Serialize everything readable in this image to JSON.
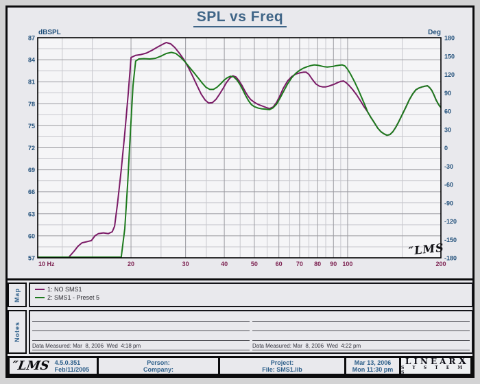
{
  "title": "SPL vs Freq",
  "colors": {
    "curve1": "#7a1a66",
    "curve2": "#1d7a1d",
    "tick_blue": "#1f4e79",
    "tick_maroon": "#7d2352",
    "grid_major": "#9a9aa0",
    "grid_minor": "#c7c7cd",
    "plot_bg": "#f5f5f7",
    "plot_border": "#000000"
  },
  "axes": {
    "left_title": "dBSPL",
    "right_title": "Deg",
    "x_first_tick": "10 Hz",
    "spl_labels": [
      "87",
      "84",
      "81",
      "78",
      "75",
      "72",
      "69",
      "66",
      "63",
      "60",
      "57"
    ],
    "deg_labels": [
      "180",
      "150",
      "120",
      "90",
      "60",
      "30",
      "0",
      "-30",
      "-60",
      "-90",
      "-120",
      "-150",
      "-180"
    ],
    "freq_labels": [
      {
        "f": 20,
        "t": "20"
      },
      {
        "f": 30,
        "t": "30"
      },
      {
        "f": 40,
        "t": "40"
      },
      {
        "f": 50,
        "t": "50"
      },
      {
        "f": 60,
        "t": "60"
      },
      {
        "f": 70,
        "t": "70"
      },
      {
        "f": 80,
        "t": "80"
      },
      {
        "f": 90,
        "t": "90"
      },
      {
        "f": 100,
        "t": "100"
      },
      {
        "f": 200,
        "t": "200"
      }
    ]
  },
  "chart_data": {
    "type": "line",
    "title": "SPL vs Freq",
    "x_axis": {
      "unit": "Hz",
      "scale": "log",
      "range": [
        10,
        200
      ],
      "major_ticks": [
        20,
        30,
        40,
        50,
        60,
        70,
        80,
        90,
        100,
        200
      ],
      "minor_ticks": [
        12,
        15,
        25,
        35,
        45,
        55,
        65,
        75,
        85,
        95,
        150
      ]
    },
    "y_left": {
      "label": "dBSPL",
      "range": [
        57,
        87
      ],
      "tick_step": 3,
      "minor_step": 1.5
    },
    "y_right": {
      "label": "Deg",
      "range": [
        -180,
        180
      ],
      "tick_step": 30
    },
    "legend_position": "map-strip-below",
    "grid": true,
    "series": [
      {
        "name": "1: NO SMS1",
        "color": "#7a1a66",
        "points": [
          [
            10,
            57
          ],
          [
            12.6,
            57
          ],
          [
            13.1,
            57.9
          ],
          [
            13.5,
            58.6
          ],
          [
            13.9,
            59.05
          ],
          [
            14.4,
            59.2
          ],
          [
            14.9,
            59.35
          ],
          [
            15.3,
            60.0
          ],
          [
            15.7,
            60.3
          ],
          [
            16.3,
            60.4
          ],
          [
            16.9,
            60.3
          ],
          [
            17.4,
            60.55
          ],
          [
            17.7,
            61.3
          ],
          [
            18.1,
            64.5
          ],
          [
            18.6,
            69
          ],
          [
            19.1,
            74
          ],
          [
            19.6,
            79.5
          ],
          [
            20,
            84.3
          ],
          [
            20.7,
            84.6
          ],
          [
            21.5,
            84.7
          ],
          [
            22.4,
            84.9
          ],
          [
            23.3,
            85.25
          ],
          [
            24.3,
            85.7
          ],
          [
            25.3,
            86.1
          ],
          [
            26,
            86.35
          ],
          [
            26.9,
            86.15
          ],
          [
            27.7,
            85.65
          ],
          [
            28.7,
            84.85
          ],
          [
            29.7,
            83.95
          ],
          [
            30.7,
            82.85
          ],
          [
            31.7,
            81.65
          ],
          [
            32.7,
            80.45
          ],
          [
            33.7,
            79.3
          ],
          [
            34.7,
            78.5
          ],
          [
            35.6,
            78.1
          ],
          [
            36.6,
            78.15
          ],
          [
            37.6,
            78.6
          ],
          [
            38.6,
            79.3
          ],
          [
            39.6,
            80.05
          ],
          [
            40.6,
            80.85
          ],
          [
            41.6,
            81.45
          ],
          [
            42.6,
            81.8
          ],
          [
            43.6,
            81.65
          ],
          [
            44.6,
            81.15
          ],
          [
            45.6,
            80.5
          ],
          [
            46.6,
            79.75
          ],
          [
            47.6,
            79.1
          ],
          [
            48.6,
            78.6
          ],
          [
            50,
            78.2
          ],
          [
            51.5,
            77.9
          ],
          [
            53,
            77.7
          ],
          [
            54.5,
            77.5
          ],
          [
            56,
            77.35
          ],
          [
            57.5,
            77.55
          ],
          [
            59,
            78.2
          ],
          [
            60.5,
            79.1
          ],
          [
            62,
            80.1
          ],
          [
            64,
            81.1
          ],
          [
            66,
            81.7
          ],
          [
            68,
            82.05
          ],
          [
            70,
            82.2
          ],
          [
            72,
            82.3
          ],
          [
            73.5,
            82.3
          ],
          [
            75,
            82.0
          ],
          [
            77,
            81.3
          ],
          [
            79,
            80.7
          ],
          [
            81,
            80.4
          ],
          [
            83,
            80.3
          ],
          [
            85,
            80.3
          ],
          [
            87,
            80.4
          ],
          [
            89,
            80.55
          ],
          [
            91,
            80.7
          ],
          [
            93,
            80.9
          ],
          [
            95,
            81.05
          ],
          [
            97,
            81.1
          ],
          [
            99,
            80.85
          ],
          [
            101,
            80.5
          ],
          [
            104,
            79.9
          ],
          [
            107,
            79.2
          ],
          [
            110,
            78.4
          ],
          [
            113,
            77.6
          ],
          [
            116,
            76.9
          ],
          [
            119,
            76.1
          ],
          [
            122,
            75.4
          ],
          [
            125,
            74.7
          ],
          [
            128,
            74.2
          ],
          [
            131,
            73.9
          ],
          [
            134,
            73.7
          ],
          [
            137,
            73.8
          ],
          [
            140,
            74.2
          ],
          [
            143,
            74.8
          ],
          [
            146,
            75.5
          ],
          [
            150,
            76.5
          ],
          [
            154,
            77.5
          ],
          [
            158,
            78.5
          ],
          [
            162,
            79.3
          ],
          [
            166,
            79.9
          ],
          [
            170,
            80.15
          ],
          [
            174,
            80.3
          ],
          [
            178,
            80.4
          ],
          [
            181,
            80.45
          ],
          [
            184,
            80.2
          ],
          [
            187,
            79.8
          ],
          [
            190,
            79.2
          ],
          [
            193,
            78.5
          ],
          [
            196,
            78.0
          ],
          [
            198,
            77.7
          ],
          [
            200,
            77.5
          ]
        ]
      },
      {
        "name": "2: SMS1 - Preset 5",
        "color": "#1d7a1d",
        "points": [
          [
            10,
            57
          ],
          [
            18.6,
            57
          ],
          [
            19.1,
            61
          ],
          [
            19.5,
            67
          ],
          [
            19.9,
            74
          ],
          [
            20.3,
            80.5
          ],
          [
            20.7,
            83.8
          ],
          [
            21.2,
            84.1
          ],
          [
            22,
            84.15
          ],
          [
            23,
            84.1
          ],
          [
            24,
            84.2
          ],
          [
            25,
            84.5
          ],
          [
            26,
            84.85
          ],
          [
            27,
            85.0
          ],
          [
            27.9,
            84.85
          ],
          [
            28.9,
            84.35
          ],
          [
            29.9,
            83.7
          ],
          [
            30.9,
            82.95
          ],
          [
            31.9,
            82.25
          ],
          [
            32.9,
            81.55
          ],
          [
            33.9,
            80.85
          ],
          [
            34.9,
            80.25
          ],
          [
            35.9,
            79.95
          ],
          [
            36.9,
            79.95
          ],
          [
            37.9,
            80.25
          ],
          [
            38.9,
            80.7
          ],
          [
            39.9,
            81.2
          ],
          [
            40.9,
            81.55
          ],
          [
            41.9,
            81.75
          ],
          [
            42.9,
            81.65
          ],
          [
            43.9,
            81.25
          ],
          [
            44.9,
            80.65
          ],
          [
            45.9,
            79.9
          ],
          [
            46.9,
            79.1
          ],
          [
            47.9,
            78.4
          ],
          [
            48.9,
            77.9
          ],
          [
            50,
            77.6
          ],
          [
            51.5,
            77.4
          ],
          [
            53,
            77.3
          ],
          [
            54.5,
            77.25
          ],
          [
            56,
            77.2
          ],
          [
            57.5,
            77.45
          ],
          [
            59,
            77.95
          ],
          [
            60.5,
            78.75
          ],
          [
            62,
            79.6
          ],
          [
            64,
            80.7
          ],
          [
            66,
            81.55
          ],
          [
            68,
            82.15
          ],
          [
            70,
            82.55
          ],
          [
            72,
            82.85
          ],
          [
            74,
            83.05
          ],
          [
            76,
            83.2
          ],
          [
            78,
            83.3
          ],
          [
            80,
            83.25
          ],
          [
            82,
            83.15
          ],
          [
            84,
            83.05
          ],
          [
            86,
            83.0
          ],
          [
            88,
            83.05
          ],
          [
            90,
            83.1
          ],
          [
            92,
            83.2
          ],
          [
            94,
            83.25
          ],
          [
            96,
            83.3
          ],
          [
            98,
            83.15
          ],
          [
            100,
            82.7
          ],
          [
            102,
            82.1
          ],
          [
            105,
            81.1
          ],
          [
            108,
            80.0
          ],
          [
            111,
            78.85
          ],
          [
            114,
            77.7
          ],
          [
            116,
            76.9
          ],
          [
            119,
            76.1
          ],
          [
            122,
            75.4
          ],
          [
            125,
            74.7
          ],
          [
            128,
            74.2
          ],
          [
            131,
            73.9
          ],
          [
            134,
            73.7
          ],
          [
            137,
            73.8
          ],
          [
            140,
            74.2
          ],
          [
            143,
            74.8
          ],
          [
            146,
            75.5
          ],
          [
            150,
            76.5
          ],
          [
            154,
            77.5
          ],
          [
            158,
            78.5
          ],
          [
            162,
            79.3
          ],
          [
            166,
            79.9
          ],
          [
            170,
            80.15
          ],
          [
            174,
            80.3
          ],
          [
            178,
            80.4
          ],
          [
            181,
            80.45
          ],
          [
            184,
            80.2
          ],
          [
            187,
            79.8
          ],
          [
            190,
            79.2
          ],
          [
            193,
            78.5
          ],
          [
            196,
            78.0
          ],
          [
            198,
            77.7
          ],
          [
            200,
            77.5
          ]
        ]
      }
    ]
  },
  "watermark": "″LMS",
  "map": {
    "label": "Map",
    "entries": [
      {
        "label": "1: NO SMS1",
        "color": "#7a1a66"
      },
      {
        "label": "2: SMS1 - Preset 5",
        "color": "#1d7a1d"
      }
    ]
  },
  "notes": {
    "label": "Notes",
    "left_caption": "Data Measured: Mar  8, 2006  Wed  4:18 pm",
    "right_caption": "Data Measured: Mar  8, 2006  Wed  4:22 pm"
  },
  "footer": {
    "lms_script": "″LMS",
    "version": "4.5.0.351",
    "version_date": "Feb/11/2005",
    "person_label": "Person:",
    "company_label": "Company:",
    "project_label": "Project:",
    "file_label": "File: SMS1.lib",
    "print_date": "Mar 13, 2006",
    "print_time": "Mon 11:30 pm",
    "brand_main": "LINEAR",
    "brand_x": "X",
    "brand_sub": "S Y S T E M S"
  }
}
